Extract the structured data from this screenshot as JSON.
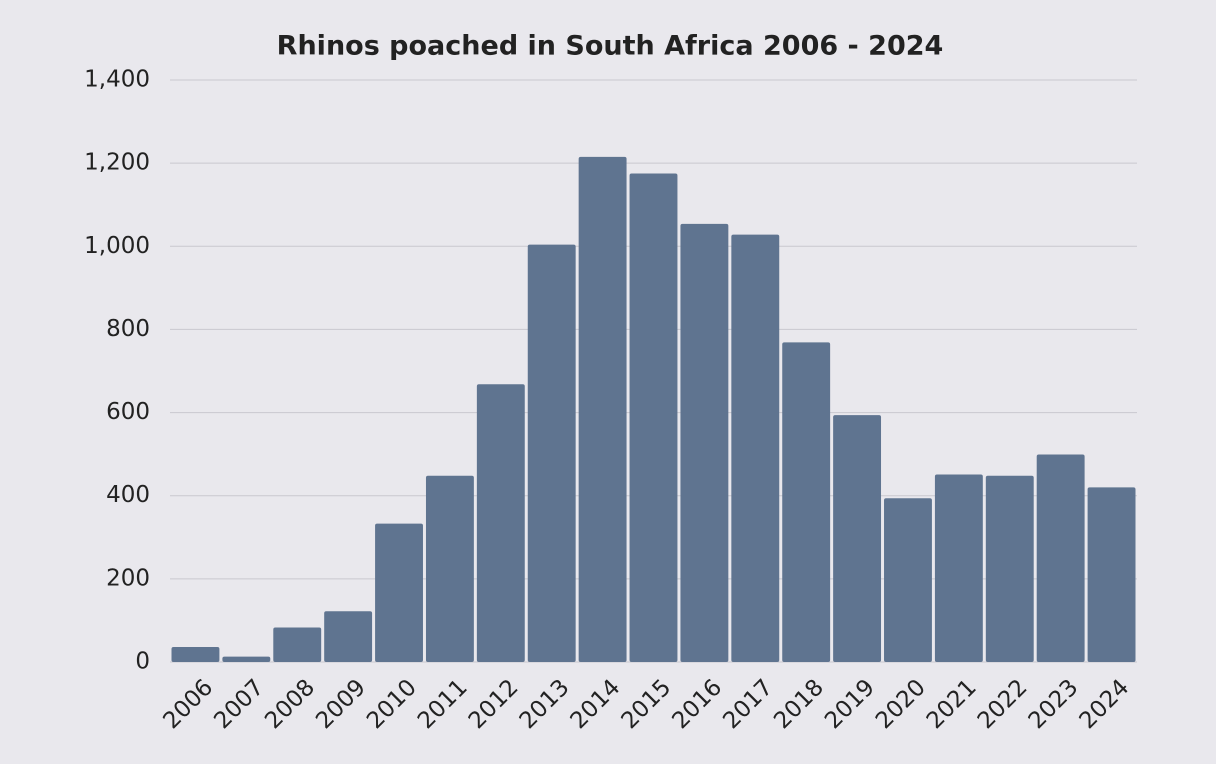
{
  "chart_data": {
    "type": "bar",
    "title": "Rhinos poached in South Africa 2006 - 2024",
    "categories": [
      "2006",
      "2007",
      "2008",
      "2009",
      "2010",
      "2011",
      "2012",
      "2013",
      "2014",
      "2015",
      "2016",
      "2017",
      "2018",
      "2019",
      "2020",
      "2021",
      "2022",
      "2023",
      "2024"
    ],
    "values": [
      36,
      13,
      83,
      122,
      333,
      448,
      668,
      1004,
      1215,
      1175,
      1054,
      1028,
      769,
      594,
      394,
      451,
      448,
      499,
      420
    ],
    "color": "#5f7490",
    "ylim": [
      0,
      1400
    ],
    "yticks": [
      0,
      200,
      400,
      600,
      800,
      {
        "value": 1000,
        "label": "1,000"
      },
      {
        "value": 1200,
        "label": "1,200"
      },
      {
        "value": 1400,
        "label": "1,400"
      }
    ],
    "grid": true
  }
}
